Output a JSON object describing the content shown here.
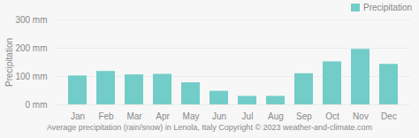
{
  "chart_data": {
    "type": "bar",
    "title": "Average precipitation (rain/snow) in Lenola, Italy  Copyright © 2023  weather-and-climate.com",
    "categories": [
      "Jan",
      "Feb",
      "Mar",
      "Apr",
      "May",
      "Jun",
      "Jul",
      "Aug",
      "Sep",
      "Oct",
      "Nov",
      "Dec"
    ],
    "series": [
      {
        "name": "Precipitation",
        "color": "#72cdc9",
        "values": [
          102,
          118,
          106,
          108,
          78,
          48,
          30,
          30,
          110,
          152,
          196,
          143
        ]
      }
    ],
    "ylabel": "Precipitation",
    "ylim": [
      0,
      300
    ],
    "yticks": [
      {
        "value": 0,
        "label": "0 mm"
      },
      {
        "value": 100,
        "label": "100 mm"
      },
      {
        "value": 200,
        "label": "200 mm"
      },
      {
        "value": 300,
        "label": "300 mm"
      }
    ],
    "grid": true,
    "legend": "upper right"
  }
}
